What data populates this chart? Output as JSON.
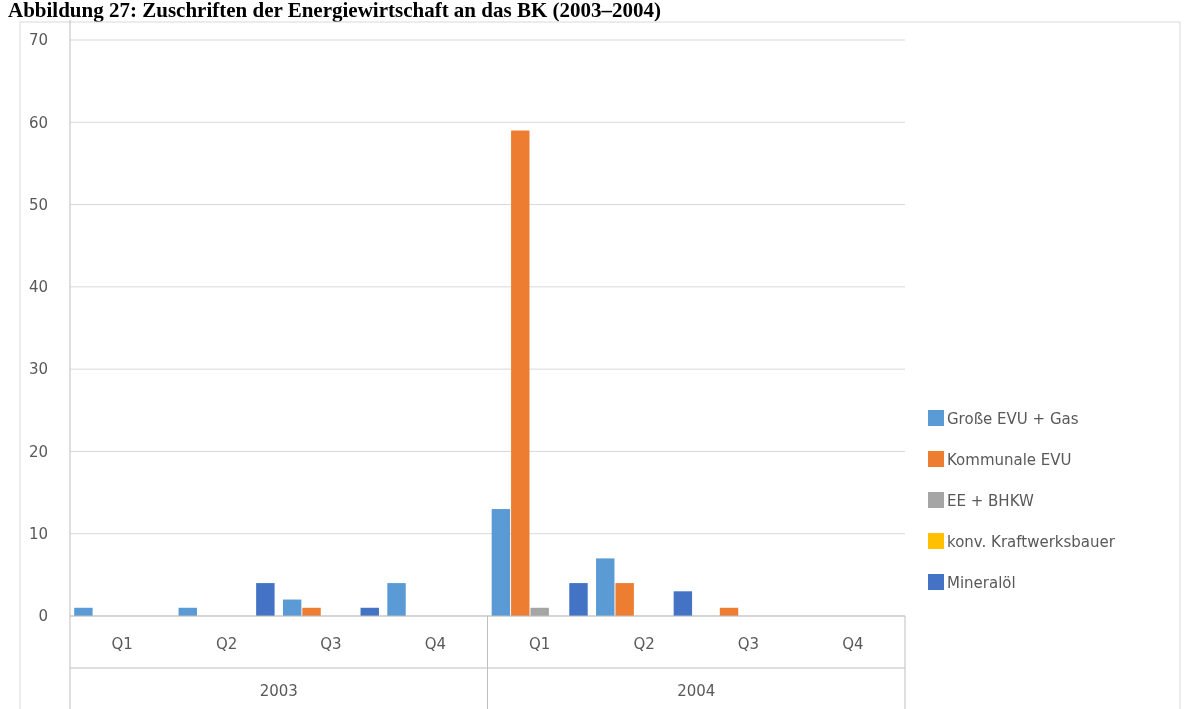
{
  "chart_data": {
    "type": "bar",
    "title": "Abbildung 27: Zuschriften der Energiewirtschaft an das BK (2003–2004)",
    "categories": [
      "Q1",
      "Q2",
      "Q3",
      "Q4",
      "Q1",
      "Q2",
      "Q3",
      "Q4"
    ],
    "annotations": [
      "2003",
      "2004"
    ],
    "series": [
      {
        "name": "Große EVU + Gas",
        "color": "#5b9bd5",
        "values": [
          1,
          1,
          2,
          4,
          13,
          7,
          0,
          0
        ]
      },
      {
        "name": "Kommunale EVU",
        "color": "#ed7d31",
        "values": [
          0,
          0,
          1,
          0,
          59,
          4,
          1,
          0
        ]
      },
      {
        "name": "EE + BHKW",
        "color": "#a5a5a5",
        "values": [
          0,
          0,
          0,
          0,
          1,
          0,
          0,
          0
        ]
      },
      {
        "name": "konv. Kraftwerksbauer",
        "color": "#ffc000",
        "values": [
          0,
          0,
          0,
          0,
          0,
          0,
          0,
          0
        ]
      },
      {
        "name": "Mineralöl",
        "color": "#4472c4",
        "values": [
          0,
          4,
          1,
          0,
          4,
          3,
          0,
          0
        ]
      }
    ],
    "ylim": [
      0,
      70
    ],
    "yticks": [
      0,
      10,
      20,
      30,
      40,
      50,
      60,
      70
    ],
    "grid": "y",
    "legend": "right"
  }
}
